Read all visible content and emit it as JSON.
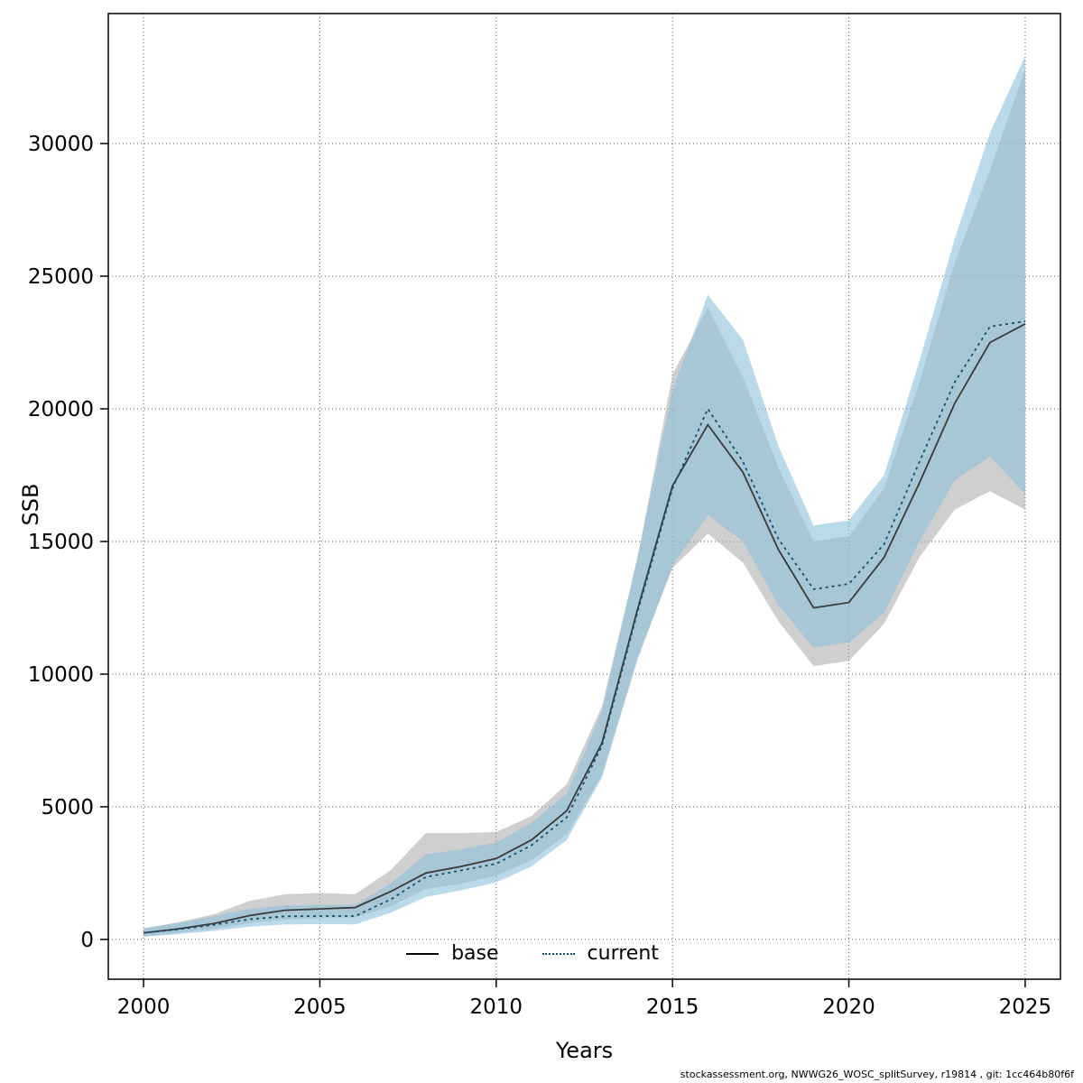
{
  "footer": {
    "text": "stockassessment.org, NWWG26_WOSC_splitSurvey, r19814 , git: 1cc464b80f6f"
  },
  "chart_data": {
    "type": "line",
    "title": "",
    "xlabel": "Years",
    "ylabel": "SSB",
    "grid": "dotted",
    "legend_position": "bottom-center-inside",
    "xlim": [
      1999,
      2026
    ],
    "ylim": [
      -1500,
      34900
    ],
    "xticks": [
      2000,
      2005,
      2010,
      2015,
      2020,
      2025
    ],
    "yticks": [
      0,
      5000,
      10000,
      15000,
      20000,
      25000,
      30000
    ],
    "x": [
      2000,
      2001,
      2002,
      2003,
      2004,
      2005,
      2006,
      2007,
      2008,
      2009,
      2010,
      2011,
      2012,
      2013,
      2014,
      2015,
      2016,
      2017,
      2018,
      2019,
      2020,
      2021,
      2022,
      2023,
      2024,
      2025
    ],
    "series": [
      {
        "name": "base",
        "line_style": "solid",
        "line_color": "#3a3a3a",
        "band_color": "#a8a8a8",
        "band_opacity": 0.55,
        "values": [
          250,
          400,
          600,
          900,
          1100,
          1150,
          1200,
          1800,
          2500,
          2750,
          3050,
          3750,
          4850,
          7400,
          12400,
          17100,
          19400,
          17600,
          14700,
          12500,
          12700,
          14400,
          17200,
          20200,
          22500,
          23200
        ],
        "lower": [
          120,
          250,
          400,
          620,
          750,
          800,
          820,
          1250,
          1900,
          2100,
          2400,
          3000,
          3950,
          6200,
          10600,
          14000,
          15300,
          14200,
          12000,
          10300,
          10500,
          11900,
          14400,
          16200,
          16900,
          16200
        ],
        "upper": [
          420,
          650,
          950,
          1450,
          1700,
          1750,
          1700,
          2600,
          4000,
          4000,
          4050,
          4650,
          5850,
          8800,
          14300,
          21300,
          23800,
          21200,
          17800,
          15000,
          15200,
          17000,
          21000,
          25500,
          29000,
          32800
        ]
      },
      {
        "name": "current",
        "line_style": "dotted",
        "line_color": "#11506e",
        "band_color": "#8cc0da",
        "band_opacity": 0.6,
        "values": [
          250,
          380,
          550,
          760,
          870,
          880,
          880,
          1500,
          2350,
          2600,
          2850,
          3550,
          4600,
          7300,
          12300,
          17000,
          20000,
          18000,
          15100,
          13200,
          13400,
          14900,
          18000,
          21000,
          23100,
          23300
        ],
        "lower": [
          100,
          200,
          320,
          480,
          560,
          580,
          570,
          1000,
          1600,
          1850,
          2150,
          2750,
          3750,
          6100,
          10500,
          14100,
          16000,
          15000,
          12600,
          11000,
          11200,
          12300,
          15000,
          17300,
          18200,
          16800
        ],
        "upper": [
          420,
          620,
          880,
          1150,
          1280,
          1300,
          1300,
          2100,
          3200,
          3400,
          3650,
          4400,
          5500,
          8600,
          14400,
          20700,
          24300,
          22600,
          18600,
          15600,
          15800,
          17500,
          21800,
          26400,
          30400,
          33300
        ]
      }
    ]
  }
}
